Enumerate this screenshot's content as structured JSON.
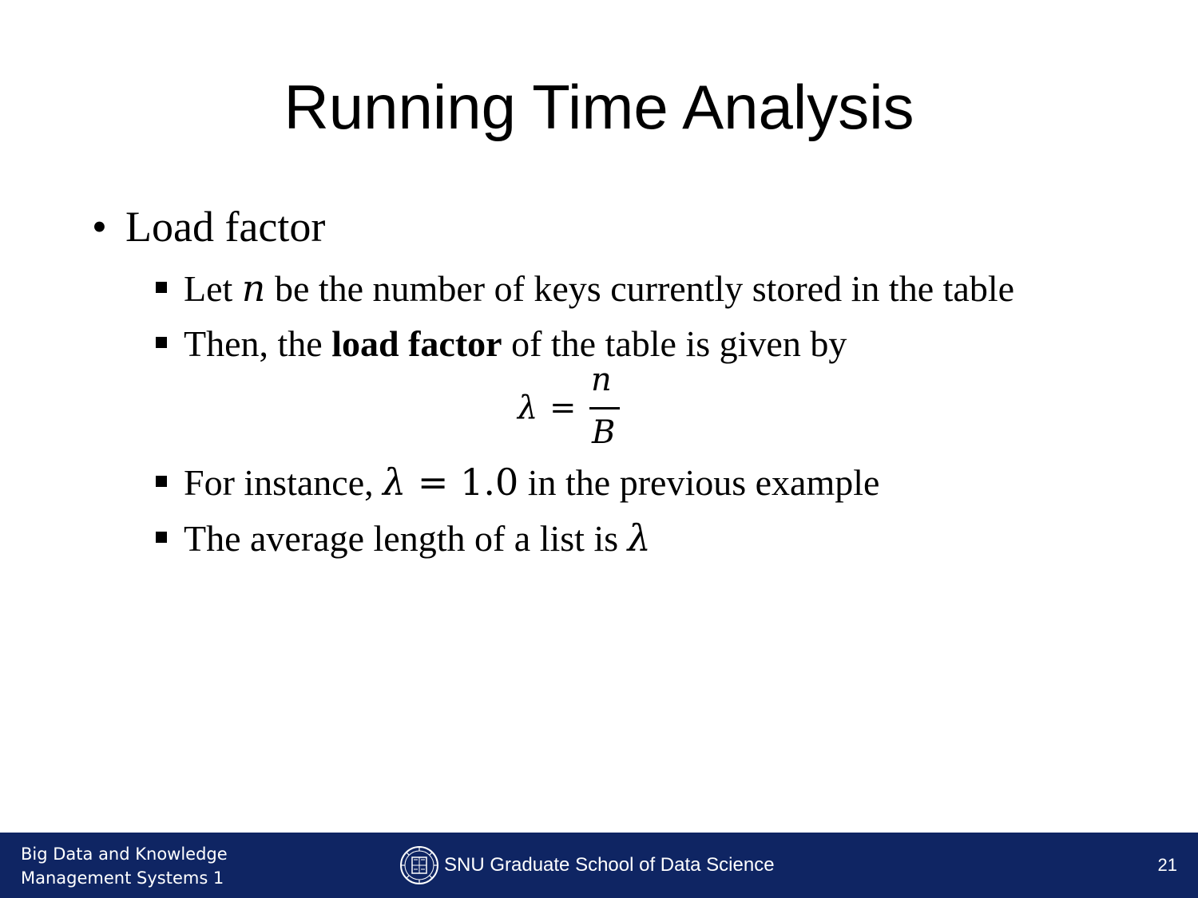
{
  "slide": {
    "title": "Running Time Analysis",
    "bullet1": {
      "marker": "•",
      "text": "Load factor"
    },
    "sub1": {
      "pre": "Let ",
      "var": "n",
      "post": " be the number of keys currently stored in the table"
    },
    "sub2": {
      "pre": "Then, the ",
      "bold": "load factor",
      "post": " of the table is given by"
    },
    "formula": {
      "lhs": "λ",
      "eq": "=",
      "numerator": "n",
      "denominator": "B"
    },
    "sub3": {
      "pre": "For instance, ",
      "math_var": "λ",
      "math_rest": " = 1.0",
      "post": " in the previous example"
    },
    "sub4": {
      "pre": "The average length of a list is ",
      "var": "λ"
    }
  },
  "footer": {
    "course_line1": "Big Data and Knowledge",
    "course_line2": "Management Systems 1",
    "school": "SNU Graduate School of Data Science",
    "logo_icon": "snu-emblem-icon",
    "page_number": "21",
    "background_color": "#0f2563"
  }
}
